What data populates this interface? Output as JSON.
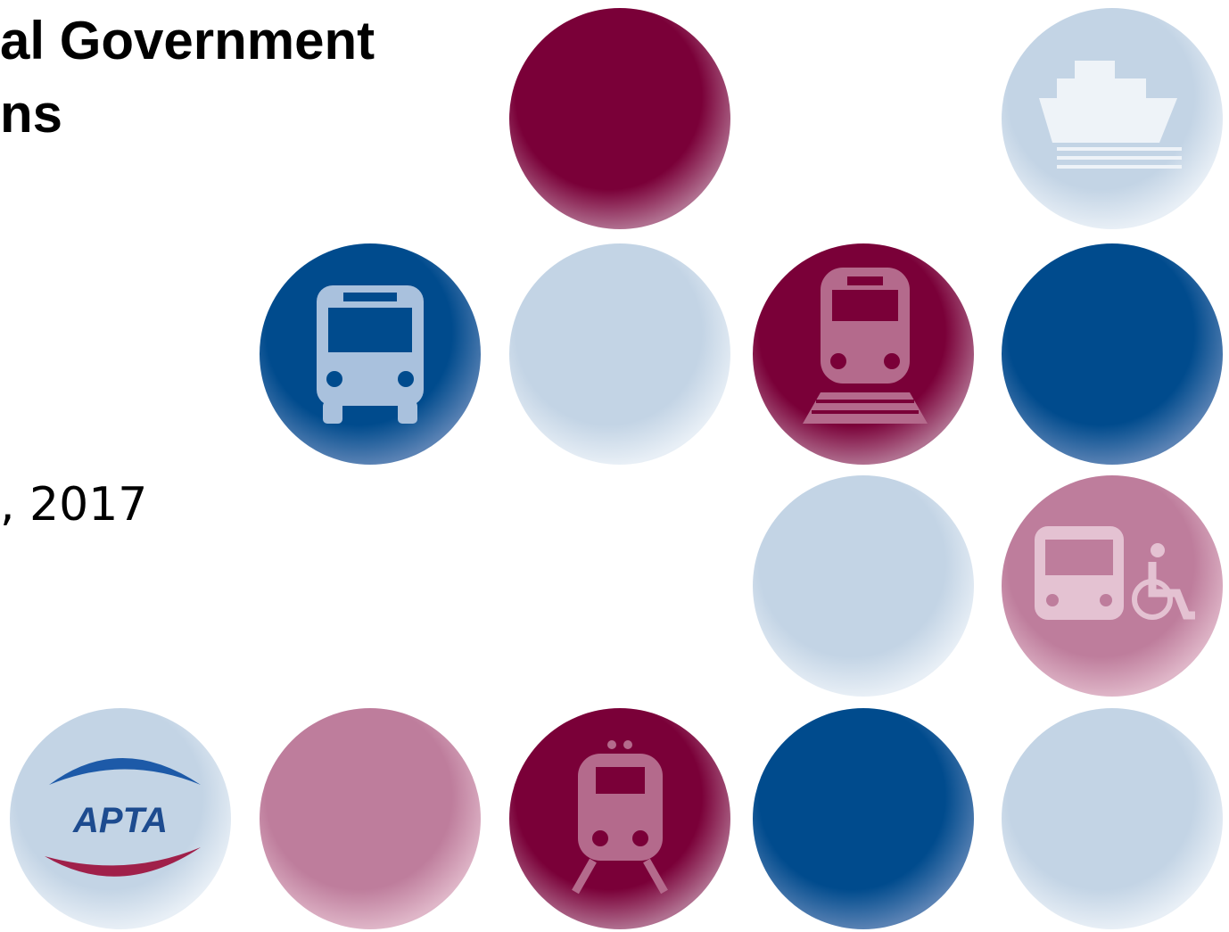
{
  "title": {
    "line1": "al Government",
    "line2": "ns"
  },
  "date": ", 2017",
  "logo": {
    "text": "APTA"
  }
}
